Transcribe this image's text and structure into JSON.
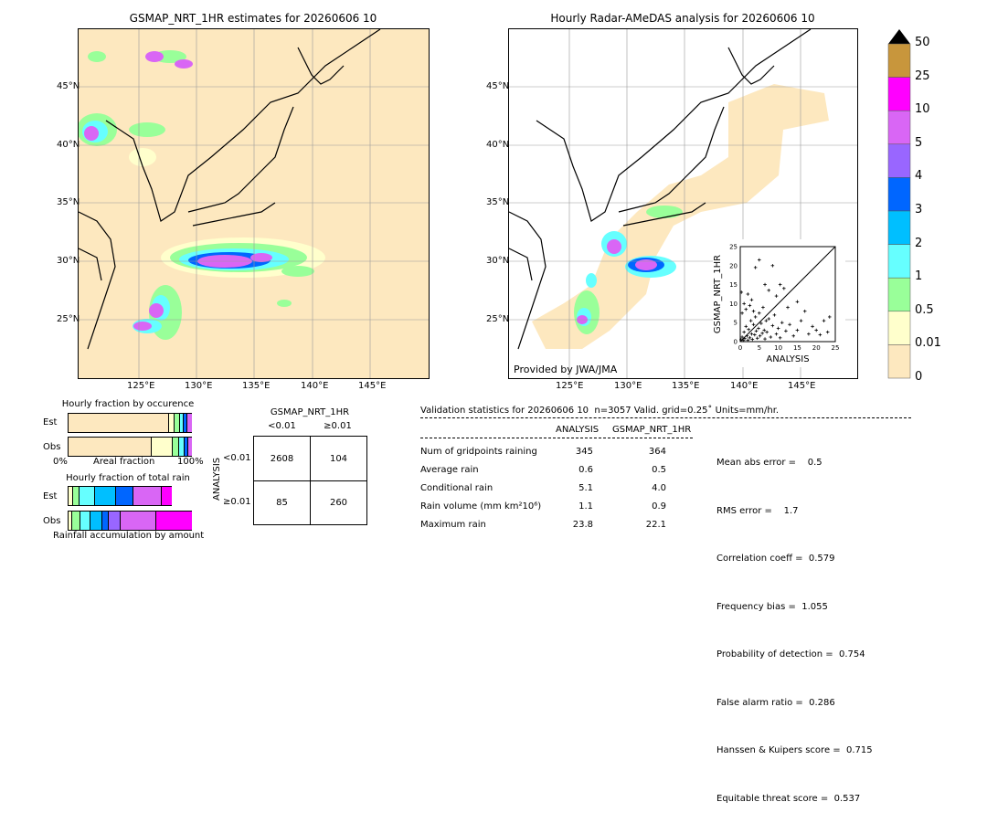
{
  "left_map": {
    "title": "GSMAP_NRT_1HR estimates for 20260606 10",
    "lat_labels": [
      "45°N",
      "40°N",
      "35°N",
      "30°N",
      "25°N"
    ],
    "lon_labels": [
      "125°E",
      "130°E",
      "135°E",
      "140°E",
      "145°E"
    ]
  },
  "right_map": {
    "title": "Hourly Radar-AMeDAS analysis for 20260606 10",
    "lat_labels": [
      "45°N",
      "40°N",
      "35°N",
      "30°N",
      "25°N"
    ],
    "lon_labels": [
      "125°E",
      "130°E",
      "135°E",
      "140°E",
      "145°E"
    ],
    "credit": "Provided by JWA/JMA"
  },
  "colorbar": {
    "labels": [
      "50",
      "25",
      "10",
      "5",
      "4",
      "3",
      "2",
      "1",
      "0.5",
      "0.01",
      "0"
    ],
    "colors": [
      "#c8963c",
      "#ff00ff",
      "#d966f5",
      "#9966ff",
      "#0066ff",
      "#00bfff",
      "#66ffff",
      "#99ff99",
      "#ffffcc",
      "#fde8bf"
    ]
  },
  "chart_data": [
    {
      "type": "scatter",
      "name": "inset",
      "xlabel": "ANALYSIS",
      "ylabel": "GSMAP_NRT_1HR",
      "xlim": [
        0,
        25
      ],
      "ylim": [
        0,
        25
      ],
      "ticks": [
        "0",
        "5",
        "10",
        "15",
        "20",
        "25"
      ],
      "diagonal": true,
      "points": [
        [
          0.2,
          0.5
        ],
        [
          0.5,
          1.2
        ],
        [
          0.8,
          0.3
        ],
        [
          1.0,
          2.5
        ],
        [
          1.2,
          0.8
        ],
        [
          1.5,
          4.0
        ],
        [
          1.8,
          1.5
        ],
        [
          2.0,
          0.4
        ],
        [
          2.2,
          3.2
        ],
        [
          2.5,
          1.0
        ],
        [
          2.8,
          5.5
        ],
        [
          3.0,
          2.0
        ],
        [
          3.2,
          0.6
        ],
        [
          3.5,
          4.5
        ],
        [
          3.8,
          1.8
        ],
        [
          4.0,
          6.5
        ],
        [
          4.2,
          2.8
        ],
        [
          4.5,
          0.9
        ],
        [
          4.8,
          3.5
        ],
        [
          5.0,
          7.5
        ],
        [
          5.2,
          1.5
        ],
        [
          5.5,
          4.8
        ],
        [
          5.8,
          2.2
        ],
        [
          6.0,
          9.0
        ],
        [
          6.3,
          3.0
        ],
        [
          6.5,
          0.7
        ],
        [
          6.8,
          5.5
        ],
        [
          7.0,
          2.5
        ],
        [
          7.5,
          6.0
        ],
        [
          8.0,
          1.2
        ],
        [
          8.5,
          4.2
        ],
        [
          9.0,
          7.0
        ],
        [
          9.5,
          2.0
        ],
        [
          10.0,
          3.5
        ],
        [
          10.5,
          1.0
        ],
        [
          11.0,
          5.0
        ],
        [
          12.0,
          2.8
        ],
        [
          13.0,
          4.5
        ],
        [
          14.0,
          1.5
        ],
        [
          15.0,
          3.0
        ],
        [
          16.0,
          5.5
        ],
        [
          18.0,
          2.0
        ],
        [
          19.0,
          4.0
        ],
        [
          20.0,
          3.0
        ],
        [
          21.0,
          1.8
        ],
        [
          22.0,
          5.5
        ],
        [
          23.0,
          2.5
        ],
        [
          23.5,
          6.5
        ],
        [
          1.0,
          10.0
        ],
        [
          2.0,
          12.5
        ],
        [
          3.0,
          11.0
        ],
        [
          4.0,
          19.5
        ],
        [
          5.0,
          21.5
        ],
        [
          6.5,
          15.0
        ],
        [
          7.5,
          13.5
        ],
        [
          8.5,
          20.0
        ],
        [
          9.5,
          12.0
        ],
        [
          10.5,
          15.0
        ],
        [
          11.5,
          14.0
        ],
        [
          0.5,
          7.5
        ],
        [
          1.5,
          8.5
        ],
        [
          2.5,
          9.5
        ],
        [
          3.5,
          8.0
        ],
        [
          0.3,
          13.0
        ],
        [
          12.5,
          9.0
        ],
        [
          15.0,
          10.5
        ],
        [
          17.0,
          8.0
        ]
      ]
    },
    {
      "type": "bar",
      "name": "hourly-fraction-by-occurence",
      "title": "Hourly fraction by occurence",
      "categories": [
        "Est",
        "Obs"
      ],
      "xlabel": "Areal fraction",
      "xtick_left": "0%",
      "xtick_right": "100%"
    },
    {
      "type": "bar",
      "name": "hourly-fraction-of-total-rain",
      "title": "Hourly fraction of total rain",
      "categories": [
        "Est",
        "Obs"
      ],
      "xlabel": "Rainfall accumulation by amount"
    },
    {
      "type": "table",
      "name": "contingency",
      "col_title": "GSMAP_NRT_1HR",
      "col_headers": [
        "<0.01",
        "≥0.01"
      ],
      "row_title": "ANALYSIS",
      "row_headers": [
        "<0.01",
        "≥0.01"
      ],
      "cells": [
        [
          "2608",
          "104"
        ],
        [
          "85",
          "260"
        ]
      ]
    }
  ],
  "stats": {
    "header": "Validation statistics for 20260606 10  n=3057 Valid. grid=0.25˚ Units=mm/hr.",
    "col1": "ANALYSIS",
    "col2": "GSMAP_NRT_1HR",
    "rows": [
      {
        "label": "Num of gridpoints raining",
        "a": "345",
        "b": "364"
      },
      {
        "label": "Average rain",
        "a": "0.6",
        "b": "0.5"
      },
      {
        "label": "Conditional rain",
        "a": "5.1",
        "b": "4.0"
      },
      {
        "label": "Rain volume (mm km²10⁶)",
        "a": "1.1",
        "b": "0.9"
      },
      {
        "label": "Maximum rain",
        "a": "23.8",
        "b": "22.1"
      }
    ],
    "scores": [
      "Mean abs error =    0.5",
      "RMS error =    1.7",
      "Correlation coeff =  0.579",
      "Frequency bias =  1.055",
      "Probability of detection =  0.754",
      "False alarm ratio =  0.286",
      "Hanssen & Kuipers score =  0.715",
      "Equitable threat score =  0.537"
    ]
  }
}
